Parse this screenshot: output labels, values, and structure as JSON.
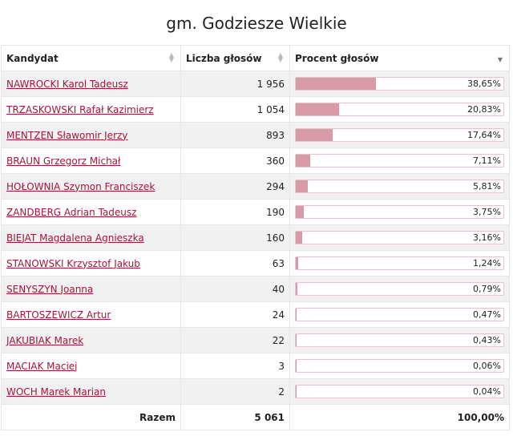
{
  "title": "gm. Godziesze Wielkie",
  "headers": {
    "candidate": "Kandydat",
    "votes": "Liczba głosów",
    "percent": "Procent głosów"
  },
  "rows": [
    {
      "name": "NAWROCKI Karol Tadeusz",
      "votes": "1 956",
      "percent": "38,65%",
      "share": 38.65
    },
    {
      "name": "TRZASKOWSKI Rafał Kazimierz",
      "votes": "1 054",
      "percent": "20,83%",
      "share": 20.83
    },
    {
      "name": "MENTZEN Sławomir Jerzy",
      "votes": "893",
      "percent": "17,64%",
      "share": 17.64
    },
    {
      "name": "BRAUN Grzegorz Michał",
      "votes": "360",
      "percent": "7,11%",
      "share": 7.11
    },
    {
      "name": "HOŁOWNIA Szymon Franciszek",
      "votes": "294",
      "percent": "5,81%",
      "share": 5.81
    },
    {
      "name": "ZANDBERG Adrian Tadeusz",
      "votes": "190",
      "percent": "3,75%",
      "share": 3.75
    },
    {
      "name": "BIEJAT Magdalena Agnieszka",
      "votes": "160",
      "percent": "3,16%",
      "share": 3.16
    },
    {
      "name": "STANOWSKI Krzysztof Jakub",
      "votes": "63",
      "percent": "1,24%",
      "share": 1.24
    },
    {
      "name": "SENYSZYN Joanna",
      "votes": "40",
      "percent": "0,79%",
      "share": 0.79
    },
    {
      "name": "BARTOSZEWICZ Artur",
      "votes": "24",
      "percent": "0,47%",
      "share": 0.47
    },
    {
      "name": "JAKUBIAK Marek",
      "votes": "22",
      "percent": "0,43%",
      "share": 0.43
    },
    {
      "name": "MACIAK Maciej",
      "votes": "3",
      "percent": "0,06%",
      "share": 0.06
    },
    {
      "name": "WOCH Marek Marian",
      "votes": "2",
      "percent": "0,04%",
      "share": 0.04
    }
  ],
  "footer": {
    "label": "Razem",
    "votes": "5 061",
    "percent": "100,00%"
  },
  "colors": {
    "link": "#a3163a",
    "bar": "#d99aa8",
    "bar_border": "#e8c4cd",
    "stripe": "#f1f1f1"
  },
  "icons": {
    "sort_inactive": "sort-both-icon",
    "sort_active": "sort-desc-icon"
  }
}
